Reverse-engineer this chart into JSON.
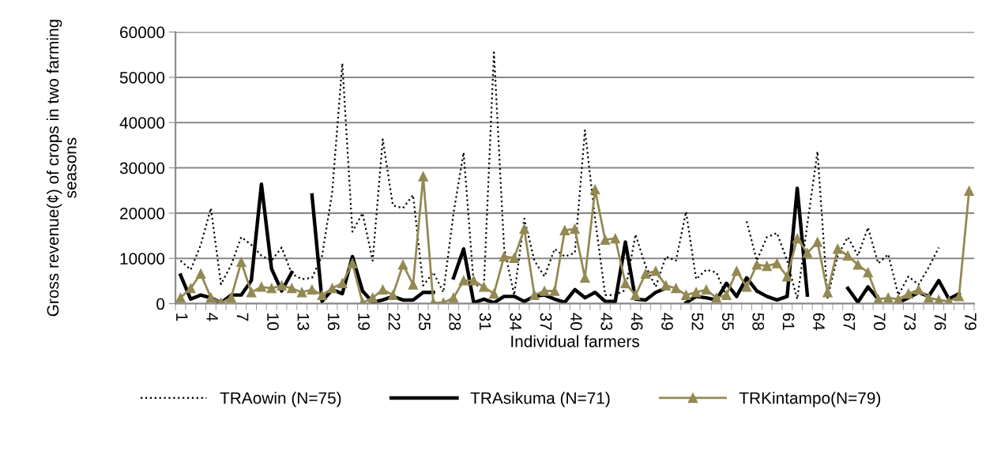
{
  "chart_data": {
    "type": "line",
    "xlabel": "Individual farmers",
    "ylabel": "Gross revenue(¢) of crops in two farming seasons",
    "categories": [
      "1",
      null,
      null,
      "4",
      null,
      null,
      "7",
      null,
      null,
      "10",
      null,
      null,
      "13",
      null,
      null,
      "16",
      null,
      null,
      "19",
      null,
      null,
      "22",
      null,
      null,
      "25",
      null,
      null,
      "28",
      null,
      null,
      "31",
      null,
      null,
      "34",
      null,
      null,
      "37",
      null,
      null,
      "40",
      null,
      null,
      "43",
      null,
      null,
      "46",
      null,
      null,
      "49",
      null,
      null,
      "52",
      null,
      null,
      "55",
      null,
      null,
      "58",
      null,
      null,
      "61",
      null,
      null,
      "64",
      null,
      null,
      "67",
      null,
      null,
      "70",
      null,
      null,
      "73",
      null,
      null,
      "76",
      null,
      null,
      "79"
    ],
    "ylim": [
      0,
      60000
    ],
    "yticks": [
      0,
      10000,
      20000,
      30000,
      40000,
      50000,
      60000
    ],
    "grid": "y",
    "legend": "bottom",
    "series": [
      {
        "name": "TRAowin (N=75)",
        "color": "#000000",
        "line_style": "dotted",
        "marker": "none",
        "values": [
          9500,
          7500,
          13000,
          21100,
          4300,
          8500,
          14700,
          13000,
          10600,
          9500,
          12400,
          6600,
          5400,
          5700,
          10600,
          24600,
          53100,
          15900,
          20000,
          9500,
          36300,
          21700,
          21100,
          24000,
          4000,
          6900,
          2500,
          20000,
          33400,
          4200,
          3700,
          55500,
          12400,
          1900,
          18800,
          9500,
          6000,
          12100,
          10400,
          11200,
          38300,
          18800,
          1900,
          1900,
          3000,
          15300,
          8300,
          3700,
          10400,
          9500,
          20300,
          5400,
          7500,
          6900,
          1600,
          null,
          18200,
          9500,
          14700,
          15600,
          9500,
          1000,
          17600,
          33600,
          1300,
          10600,
          14700,
          10600,
          16800,
          8900,
          10900,
          1900,
          6000,
          4200,
          8000,
          12400,
          null,
          null,
          null
        ]
      },
      {
        "name": "TRAsikuma (N=71)",
        "color": "#000000",
        "line_style": "solid",
        "marker": "none",
        "values": [
          6300,
          1000,
          1900,
          1300,
          200,
          1900,
          1900,
          5100,
          26400,
          7700,
          2800,
          6900,
          null,
          24000,
          500,
          3100,
          2200,
          10400,
          2800,
          300,
          800,
          1600,
          800,
          800,
          2500,
          2500,
          null,
          5700,
          12100,
          200,
          1000,
          200,
          1600,
          1600,
          500,
          1600,
          1900,
          1000,
          300,
          3100,
          1300,
          2500,
          500,
          500,
          13600,
          1000,
          800,
          2500,
          3400,
          null,
          200,
          1600,
          1300,
          800,
          4500,
          1600,
          5700,
          2800,
          1600,
          800,
          1600,
          25500,
          1900,
          null,
          null,
          null,
          3400,
          300,
          3700,
          1000,
          null,
          200,
          1300,
          2500,
          1600,
          5100,
          1000,
          2200,
          null
        ]
      },
      {
        "name": "TRKintampo(N=79)",
        "color": "#938953",
        "line_style": "solid",
        "marker": "triangle",
        "values": [
          1300,
          3400,
          6600,
          1300,
          200,
          1300,
          9200,
          2500,
          3700,
          3400,
          4000,
          3400,
          2500,
          3100,
          1900,
          3400,
          4500,
          8900,
          200,
          1300,
          3100,
          1900,
          8600,
          4200,
          28100,
          200,
          200,
          1300,
          5100,
          5100,
          3700,
          2200,
          10400,
          10100,
          16500,
          1900,
          2800,
          2800,
          16200,
          16500,
          5700,
          25200,
          14100,
          14400,
          4500,
          1900,
          6600,
          7200,
          4000,
          3400,
          1900,
          2500,
          3100,
          1300,
          1900,
          7200,
          3700,
          8600,
          8300,
          8900,
          6000,
          14400,
          11200,
          13600,
          2500,
          12100,
          10600,
          8600,
          6900,
          1000,
          1300,
          1000,
          2200,
          3100,
          1300,
          800,
          500,
          1600,
          24900
        ]
      }
    ]
  }
}
